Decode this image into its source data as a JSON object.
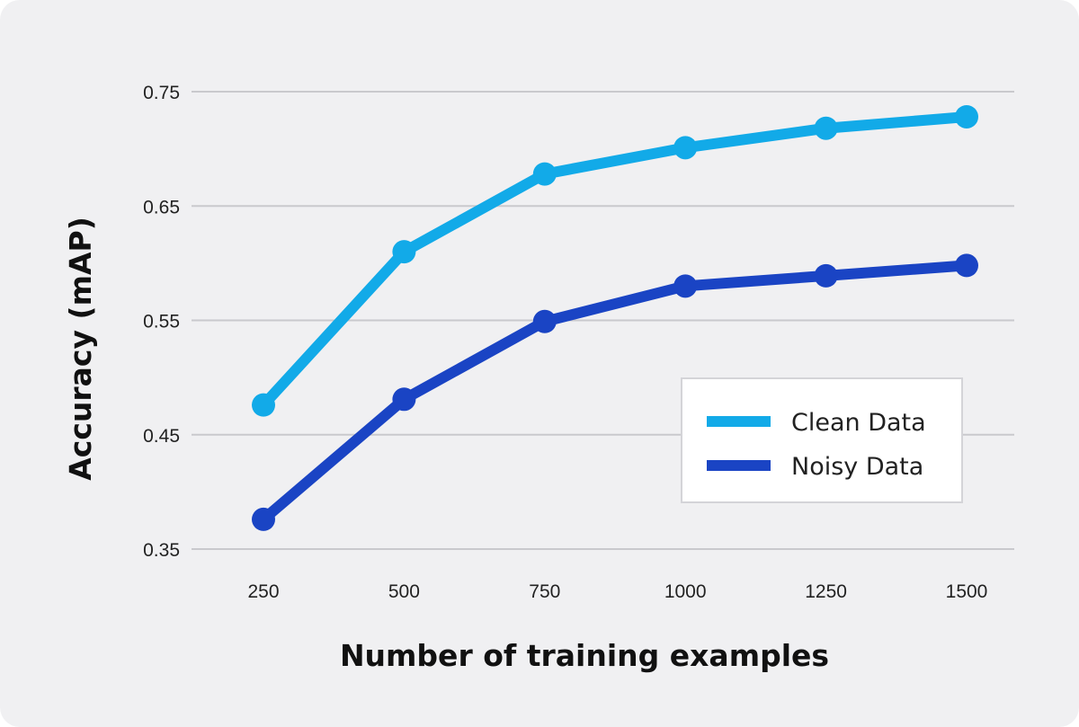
{
  "chart_data": {
    "type": "line",
    "x": [
      250,
      500,
      750,
      1000,
      1250,
      1500
    ],
    "x_tick_labels": [
      "250",
      "500",
      "750",
      "1000",
      "1250",
      "1500"
    ],
    "y_tick_labels": [
      "0.75",
      "0.65",
      "0.55",
      "0.45",
      "0.35"
    ],
    "y_ticks": [
      0.75,
      0.65,
      0.55,
      0.45,
      0.35
    ],
    "ylim": [
      0.35,
      0.75
    ],
    "xlabel": "Number of training examples",
    "ylabel": "Accuracy (mAP)",
    "grid": "horizontal",
    "legend_position": "bottom-right",
    "series": [
      {
        "name": "Clean Data",
        "color": "#12aae8",
        "values": [
          0.476,
          0.61,
          0.678,
          0.701,
          0.718,
          0.728
        ]
      },
      {
        "name": "Noisy Data",
        "color": "#1a44c4",
        "values": [
          0.376,
          0.481,
          0.549,
          0.58,
          0.589,
          0.598
        ]
      }
    ]
  }
}
